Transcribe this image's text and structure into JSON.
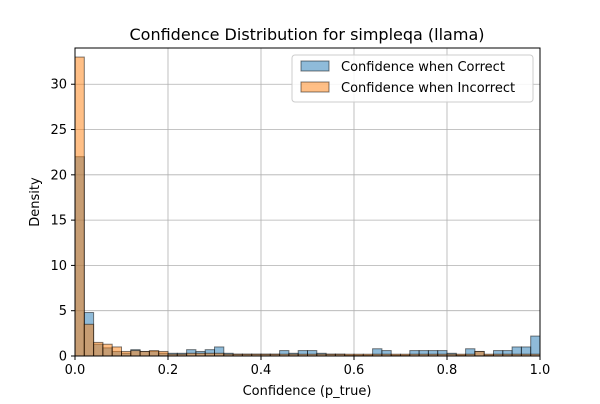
{
  "chart_data": {
    "type": "histogram",
    "title": "Confidence Distribution for simpleqa (llama)",
    "xlabel": "Confidence (p_true)",
    "ylabel": "Density",
    "xlim": [
      0,
      1
    ],
    "ylim": [
      0,
      34
    ],
    "bins": 50,
    "bin_width": 0.02,
    "xticks": [
      0,
      0.2,
      0.4,
      0.6,
      0.8,
      1
    ],
    "xtick_labels": [
      "0.0",
      "0.2",
      "0.4",
      "0.6",
      "0.8",
      "1.0"
    ],
    "yticks": [
      0,
      5,
      10,
      15,
      20,
      25,
      30
    ],
    "ytick_labels": [
      "0",
      "5",
      "10",
      "15",
      "20",
      "25",
      "30"
    ],
    "grid": true,
    "legend_position": "upper-right",
    "series": [
      {
        "name": "Confidence when Correct",
        "color": "#1f77b4",
        "values": [
          22,
          4.8,
          1.3,
          0.9,
          0.5,
          0.3,
          0.7,
          0.5,
          0.5,
          0.3,
          0.3,
          0.3,
          0.7,
          0.5,
          0.7,
          1.0,
          0.3,
          0.2,
          0.2,
          0.2,
          0.2,
          0.2,
          0.6,
          0.3,
          0.6,
          0.6,
          0.3,
          0.2,
          0.2,
          0.1,
          0.1,
          0.1,
          0.8,
          0.6,
          0.1,
          0.1,
          0.6,
          0.6,
          0.6,
          0.6,
          0.3,
          0.1,
          0.8,
          0.5,
          0.1,
          0.6,
          0.6,
          1.0,
          1.0,
          2.2
        ]
      },
      {
        "name": "Confidence when Incorrect",
        "color": "#ff7f0e",
        "values": [
          33,
          3.5,
          1.5,
          1.3,
          1.0,
          0.5,
          0.6,
          0.5,
          0.6,
          0.5,
          0.2,
          0.2,
          0.3,
          0.3,
          0.3,
          0.3,
          0.2,
          0.2,
          0.2,
          0.2,
          0.2,
          0.2,
          0.2,
          0.2,
          0.2,
          0.2,
          0.2,
          0.2,
          0.2,
          0.2,
          0.2,
          0.2,
          0.2,
          0.2,
          0.2,
          0.2,
          0.2,
          0.2,
          0.2,
          0.2,
          0.2,
          0.2,
          0.2,
          0.5,
          0.2,
          0.2,
          0.2,
          0.2,
          0.2,
          0.2
        ]
      }
    ]
  }
}
